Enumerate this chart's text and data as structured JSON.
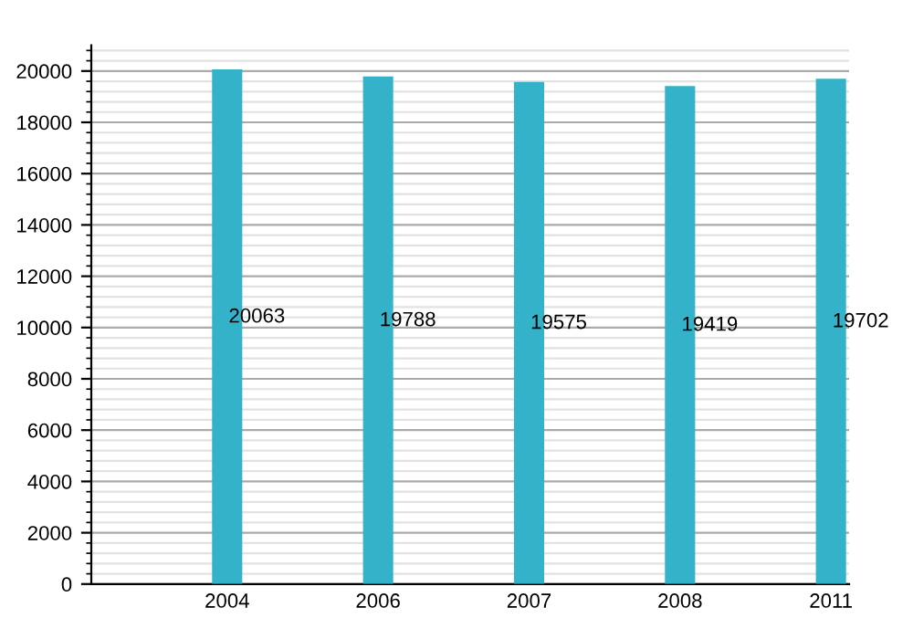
{
  "chart_data": {
    "type": "bar",
    "categories": [
      "2004",
      "2006",
      "2007",
      "2008",
      "2011"
    ],
    "values": [
      20063,
      19788,
      19575,
      19419,
      19702
    ],
    "color": "#33b2c9",
    "ylim": [
      0,
      21000
    ],
    "yticks": [
      0,
      2000,
      4000,
      6000,
      8000,
      10000,
      12000,
      14000,
      16000,
      18000,
      20000
    ],
    "grid": "y",
    "data_labels": true
  }
}
